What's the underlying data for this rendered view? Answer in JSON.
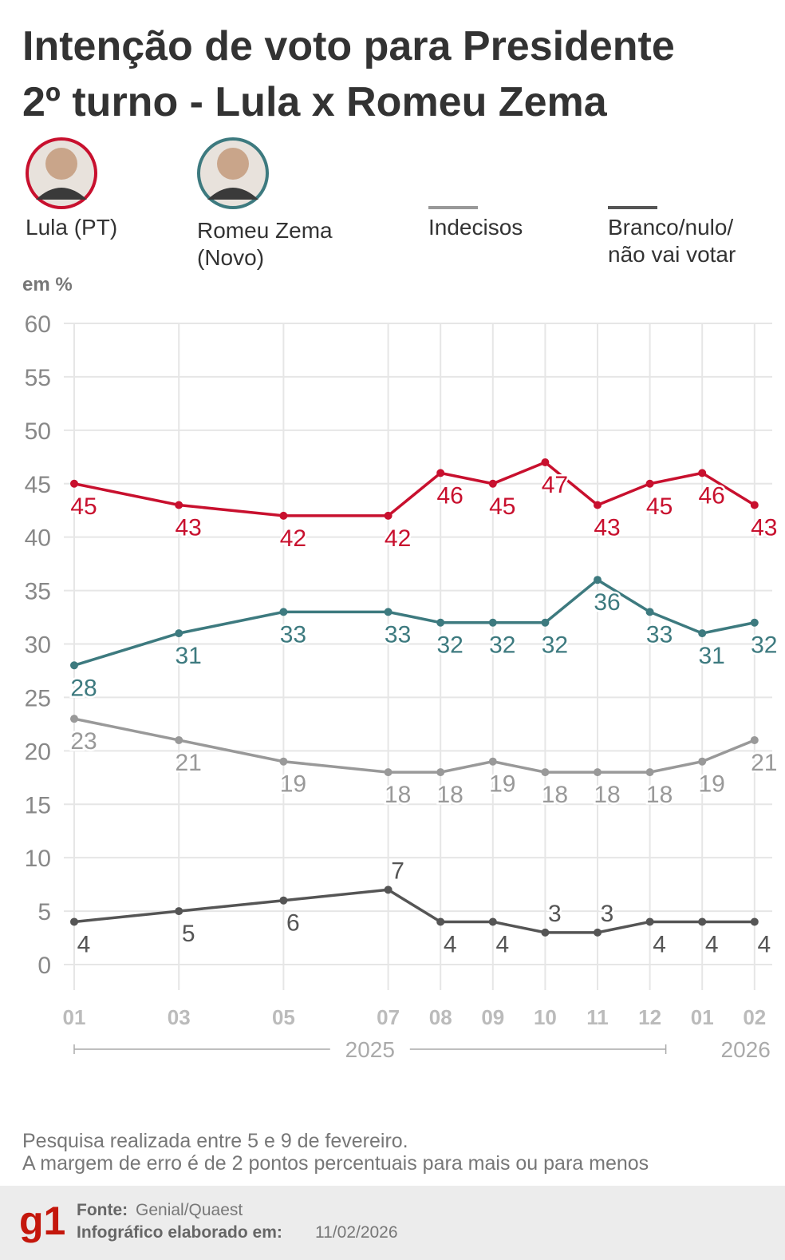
{
  "chart_data": {
    "type": "line",
    "title": [
      "Intenção de voto para Presidente",
      "2º turno - Lula x Romeu Zema"
    ],
    "y_label": "em %",
    "x": [
      "2025-01",
      "2025-03",
      "2025-05",
      "2025-07",
      "2025-08",
      "2025-09",
      "2025-10",
      "2025-11",
      "2025-12",
      "2026-01",
      "2026-02"
    ],
    "xticks": [
      {
        "value": "2025-01",
        "label": "01"
      },
      {
        "value": "2025-03",
        "label": "03"
      },
      {
        "value": "2025-05",
        "label": "05"
      },
      {
        "value": "2025-07",
        "label": "07"
      },
      {
        "value": "2025-08",
        "label": "08"
      },
      {
        "value": "2025-09",
        "label": "09"
      },
      {
        "value": "2025-10",
        "label": "10"
      },
      {
        "value": "2025-11",
        "label": "11"
      },
      {
        "value": "2025-12",
        "label": "12"
      },
      {
        "value": "2026-01",
        "label": "01"
      },
      {
        "value": "2026-02",
        "label": "02"
      }
    ],
    "year_labels": [
      "2025",
      "2026"
    ],
    "ylim": [
      0,
      60
    ],
    "yticks": [
      0,
      5,
      10,
      15,
      20,
      25,
      30,
      35,
      40,
      45,
      50,
      55,
      60
    ],
    "grid": true,
    "series": [
      {
        "name": "Lula (PT)",
        "color": "#c8102e",
        "photo": true,
        "values": [
          45,
          43,
          42,
          42,
          46,
          45,
          47,
          43,
          45,
          46,
          43
        ]
      },
      {
        "name": "Romeu Zema (Novo)",
        "color": "#3d7a7f",
        "photo": true,
        "values": [
          28,
          31,
          33,
          33,
          32,
          32,
          32,
          36,
          33,
          31,
          32
        ]
      },
      {
        "name": "Indecisos",
        "color": "#999999",
        "photo": false,
        "values": [
          23,
          21,
          19,
          18,
          18,
          19,
          18,
          18,
          18,
          19,
          21
        ]
      },
      {
        "name": "Branco/nulo/ não vai votar",
        "color": "#555555",
        "photo": false,
        "values": [
          4,
          5,
          6,
          7,
          4,
          4,
          3,
          3,
          4,
          4,
          4
        ]
      }
    ],
    "notes": [
      "Pesquisa realizada entre 5 e 9 de fevereiro.",
      "A margem de erro é de 2 pontos percentuais para mais ou para menos"
    ],
    "source_label": "Fonte:",
    "source": "Genial/Quaest",
    "date_label": "Infográfico elaborado em:",
    "date": "11/02/2026",
    "logo": "g1"
  }
}
